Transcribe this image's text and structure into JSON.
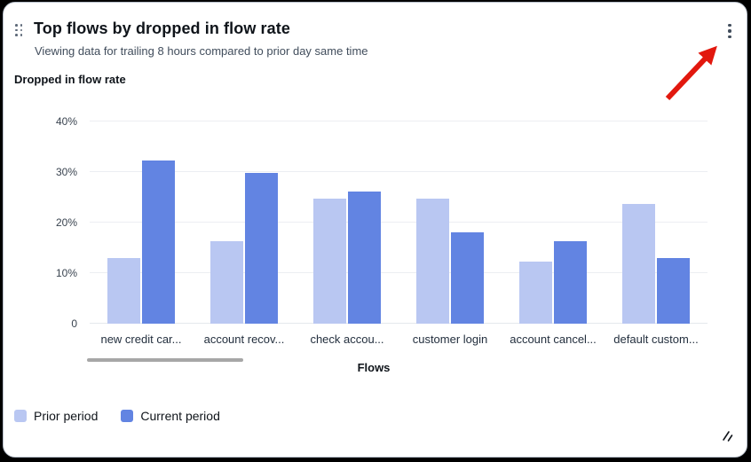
{
  "card": {
    "title": "Top flows by dropped in flow rate",
    "subtitle": "Viewing data for trailing 8 hours compared to prior day same time",
    "chart_label": "Dropped in flow rate"
  },
  "icons": {
    "drag_handle": "drag-handle-dots",
    "kebab": "vertical-ellipsis",
    "resize": "diagonal-resize-grip",
    "annotation": "red-arrow-pointing-to-kebab-menu"
  },
  "colors": {
    "prior_period": "#b9c7f2",
    "current_period": "#6284e2",
    "annotation_arrow": "#e2180e",
    "gridline": "#eceef2",
    "scrollbar": "#a7a7a7"
  },
  "chart_data": {
    "type": "bar",
    "title": "Dropped in flow rate",
    "xlabel": "Flows",
    "ylabel": "",
    "ylim": [
      0,
      40
    ],
    "grid": true,
    "legend_position": "bottom-left",
    "yticks": [
      {
        "v": 0,
        "label": "0"
      },
      {
        "v": 10,
        "label": "10%"
      },
      {
        "v": 20,
        "label": "20%"
      },
      {
        "v": 30,
        "label": "30%"
      },
      {
        "v": 40,
        "label": "40%"
      }
    ],
    "categories": [
      "new credit car...",
      "account recov...",
      "check accou...",
      "customer login",
      "account cancel...",
      "default custom..."
    ],
    "series": [
      {
        "name": "Prior period",
        "color": "#b9c7f2",
        "values": [
          13.0,
          16.4,
          24.7,
          24.7,
          12.2,
          23.6
        ]
      },
      {
        "name": "Current period",
        "color": "#6284e2",
        "values": [
          32.3,
          29.9,
          26.1,
          18.0,
          16.4,
          13.0
        ]
      }
    ]
  }
}
